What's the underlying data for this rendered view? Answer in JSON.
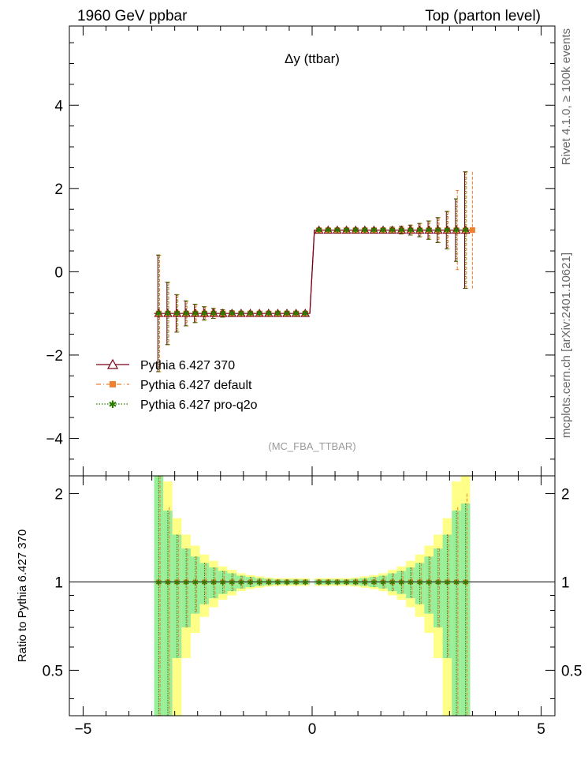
{
  "header": {
    "left_label": "1960 GeV ppbar",
    "right_label": "Top (parton level)"
  },
  "side_labels": {
    "rivet": "Rivet 4.1.0, ≥ 100k events",
    "mcplots": "mcplots.cern.ch [arXiv:2401.10621]"
  },
  "watermark": "(MC_FBA_TTBAR)",
  "colors": {
    "pythia370": "#7a0016",
    "pythia_default": "#f08030",
    "pythia_q2o": "#2a7a00",
    "band_inner": "#99ee99",
    "band_outer": "#ffff88"
  },
  "chart_data": [
    {
      "type": "line",
      "title": "Δy (ttbar)",
      "xlabel": "",
      "ylabel": "",
      "xlim": [
        -5.3,
        5.3
      ],
      "ylim": [
        -4.9,
        5.9
      ],
      "x_ticks": [
        "−5",
        "0",
        "5"
      ],
      "y_ticks": [
        "−4",
        "−2",
        "0",
        "2",
        "4"
      ],
      "y_tick_values": [
        -4,
        -2,
        0,
        2,
        4
      ],
      "x": [
        -3.35,
        -3.15,
        -2.95,
        -2.75,
        -2.55,
        -2.35,
        -2.15,
        -1.95,
        -1.75,
        -1.55,
        -1.35,
        -1.15,
        -0.95,
        -0.75,
        -0.55,
        -0.35,
        -0.15,
        0.15,
        0.35,
        0.55,
        0.75,
        0.95,
        1.15,
        1.35,
        1.55,
        1.75,
        1.95,
        2.15,
        2.35,
        2.55,
        2.75,
        2.95,
        3.15,
        3.35
      ],
      "series": [
        {
          "name": "Pythia 6.427 370",
          "values": [
            -1,
            -1,
            -1,
            -1,
            -1,
            -1,
            -1,
            -1,
            -1,
            -1,
            -1,
            -1,
            -1,
            -1,
            -1,
            -1,
            -1,
            1,
            1,
            1,
            1,
            1,
            1,
            1,
            1,
            1,
            1,
            1,
            1,
            1,
            1,
            1,
            1,
            1
          ],
          "errors": [
            1.4,
            0.75,
            0.45,
            0.3,
            0.22,
            0.16,
            0.12,
            0.09,
            0.07,
            0.05,
            0.04,
            0.03,
            0.03,
            0.02,
            0.02,
            0.02,
            0.02,
            0.02,
            0.02,
            0.02,
            0.02,
            0.03,
            0.03,
            0.04,
            0.05,
            0.07,
            0.09,
            0.12,
            0.16,
            0.22,
            0.3,
            0.45,
            0.75,
            1.4
          ]
        },
        {
          "name": "Pythia 6.427 default",
          "values": [
            -1,
            -1,
            -1,
            -1,
            -1,
            -1,
            -1,
            -1,
            -1,
            -1,
            -1,
            -1,
            -1,
            -1,
            -1,
            -1,
            -1,
            1,
            1,
            1,
            1,
            1,
            1,
            1,
            1,
            1,
            1,
            1,
            1,
            1,
            1,
            1,
            1,
            1
          ],
          "errors": [
            1.4,
            0.75,
            0.45,
            0.3,
            0.22,
            0.16,
            0.12,
            0.09,
            0.07,
            0.05,
            0.04,
            0.03,
            0.03,
            0.02,
            0.02,
            0.02,
            0.02,
            0.02,
            0.02,
            0.02,
            0.02,
            0.03,
            0.03,
            0.04,
            0.05,
            0.07,
            0.09,
            0.12,
            0.16,
            0.22,
            0.3,
            0.45,
            0.95,
            1.4
          ]
        },
        {
          "name": "Pythia 6.427 pro-q2o",
          "values": [
            -1,
            -1,
            -1,
            -1,
            -1,
            -1,
            -1,
            -1,
            -1,
            -1,
            -1,
            -1,
            -1,
            -1,
            -1,
            -1,
            -1,
            1,
            1,
            1,
            1,
            1,
            1,
            1,
            1,
            1,
            1,
            1,
            1,
            1,
            1,
            1,
            1,
            1
          ],
          "errors": [
            1.4,
            0.75,
            0.45,
            0.3,
            0.22,
            0.16,
            0.12,
            0.09,
            0.07,
            0.05,
            0.04,
            0.03,
            0.03,
            0.02,
            0.02,
            0.02,
            0.02,
            0.02,
            0.02,
            0.02,
            0.02,
            0.03,
            0.03,
            0.04,
            0.05,
            0.07,
            0.09,
            0.12,
            0.16,
            0.22,
            0.3,
            0.45,
            0.75,
            1.4
          ]
        }
      ],
      "legend_position": "lower-left"
    },
    {
      "type": "line",
      "title": "",
      "xlabel": "",
      "ylabel": "Ratio to Pythia 6.427 370",
      "xlim": [
        -5.3,
        5.3
      ],
      "ylim": [
        0.35,
        2.3
      ],
      "log_y": true,
      "x_ticks": [
        "−5",
        "0",
        "5"
      ],
      "x_tick_values": [
        -5,
        0,
        5
      ],
      "y_ticks": [
        "0.5",
        "1",
        "2"
      ],
      "y_tick_values": [
        0.5,
        1,
        2
      ],
      "reference_line": 1,
      "band": {
        "x": [
          -3.35,
          -3.15,
          -2.95,
          -2.75,
          -2.55,
          -2.35,
          -2.15,
          -1.95,
          -1.75,
          -1.55,
          -1.35,
          -1.15,
          -0.95,
          -0.75,
          -0.55,
          -0.35,
          -0.15,
          0.15,
          0.35,
          0.55,
          0.75,
          0.95,
          1.15,
          1.35,
          1.55,
          1.75,
          1.95,
          2.15,
          2.35,
          2.55,
          2.75,
          2.95,
          3.15,
          3.35
        ],
        "inner_half_width": [
          1.4,
          0.75,
          0.45,
          0.3,
          0.22,
          0.16,
          0.12,
          0.09,
          0.07,
          0.05,
          0.04,
          0.03,
          0.025,
          0.02,
          0.02,
          0.02,
          0.02,
          0.02,
          0.02,
          0.02,
          0.02,
          0.025,
          0.03,
          0.04,
          0.05,
          0.07,
          0.09,
          0.12,
          0.16,
          0.22,
          0.3,
          0.45,
          0.75,
          0.85
        ],
        "outer_half_width": [
          2.0,
          1.2,
          0.65,
          0.45,
          0.33,
          0.24,
          0.18,
          0.13,
          0.1,
          0.07,
          0.055,
          0.045,
          0.035,
          0.03,
          0.03,
          0.03,
          0.03,
          0.03,
          0.03,
          0.03,
          0.03,
          0.035,
          0.045,
          0.055,
          0.07,
          0.1,
          0.13,
          0.18,
          0.24,
          0.33,
          0.45,
          0.65,
          1.2,
          2.0
        ]
      },
      "series": [
        {
          "name": "Pythia 6.427 default",
          "values": [
            1,
            1,
            1,
            1,
            1,
            1,
            1,
            1,
            1,
            1,
            1,
            1,
            1,
            1,
            1,
            1,
            1,
            1,
            1,
            1,
            1,
            1,
            1,
            1,
            1,
            1,
            1,
            1,
            1,
            1,
            1,
            1,
            1,
            1
          ],
          "errors": [
            1.4,
            0.8,
            0.45,
            0.3,
            0.22,
            0.16,
            0.12,
            0.09,
            0.07,
            0.05,
            0.04,
            0.03,
            0.025,
            0.02,
            0.02,
            0.02,
            0.02,
            0.02,
            0.02,
            0.02,
            0.02,
            0.025,
            0.03,
            0.04,
            0.05,
            0.07,
            0.09,
            0.12,
            0.16,
            0.22,
            0.3,
            0.45,
            0.8,
            1.0
          ]
        },
        {
          "name": "Pythia 6.427 pro-q2o",
          "values": [
            1,
            1,
            1,
            1,
            1,
            1,
            1,
            1,
            1,
            1,
            1,
            1,
            1,
            1,
            1,
            1,
            1,
            1,
            1,
            1,
            1,
            1,
            1,
            1,
            1,
            1,
            1,
            1,
            1,
            1,
            1,
            1,
            1,
            1
          ],
          "errors": [
            1.4,
            0.75,
            0.45,
            0.3,
            0.22,
            0.16,
            0.12,
            0.09,
            0.07,
            0.05,
            0.04,
            0.03,
            0.025,
            0.02,
            0.02,
            0.02,
            0.02,
            0.02,
            0.02,
            0.02,
            0.02,
            0.025,
            0.03,
            0.04,
            0.05,
            0.07,
            0.09,
            0.12,
            0.16,
            0.22,
            0.3,
            0.45,
            0.75,
            0.85
          ]
        }
      ]
    }
  ]
}
